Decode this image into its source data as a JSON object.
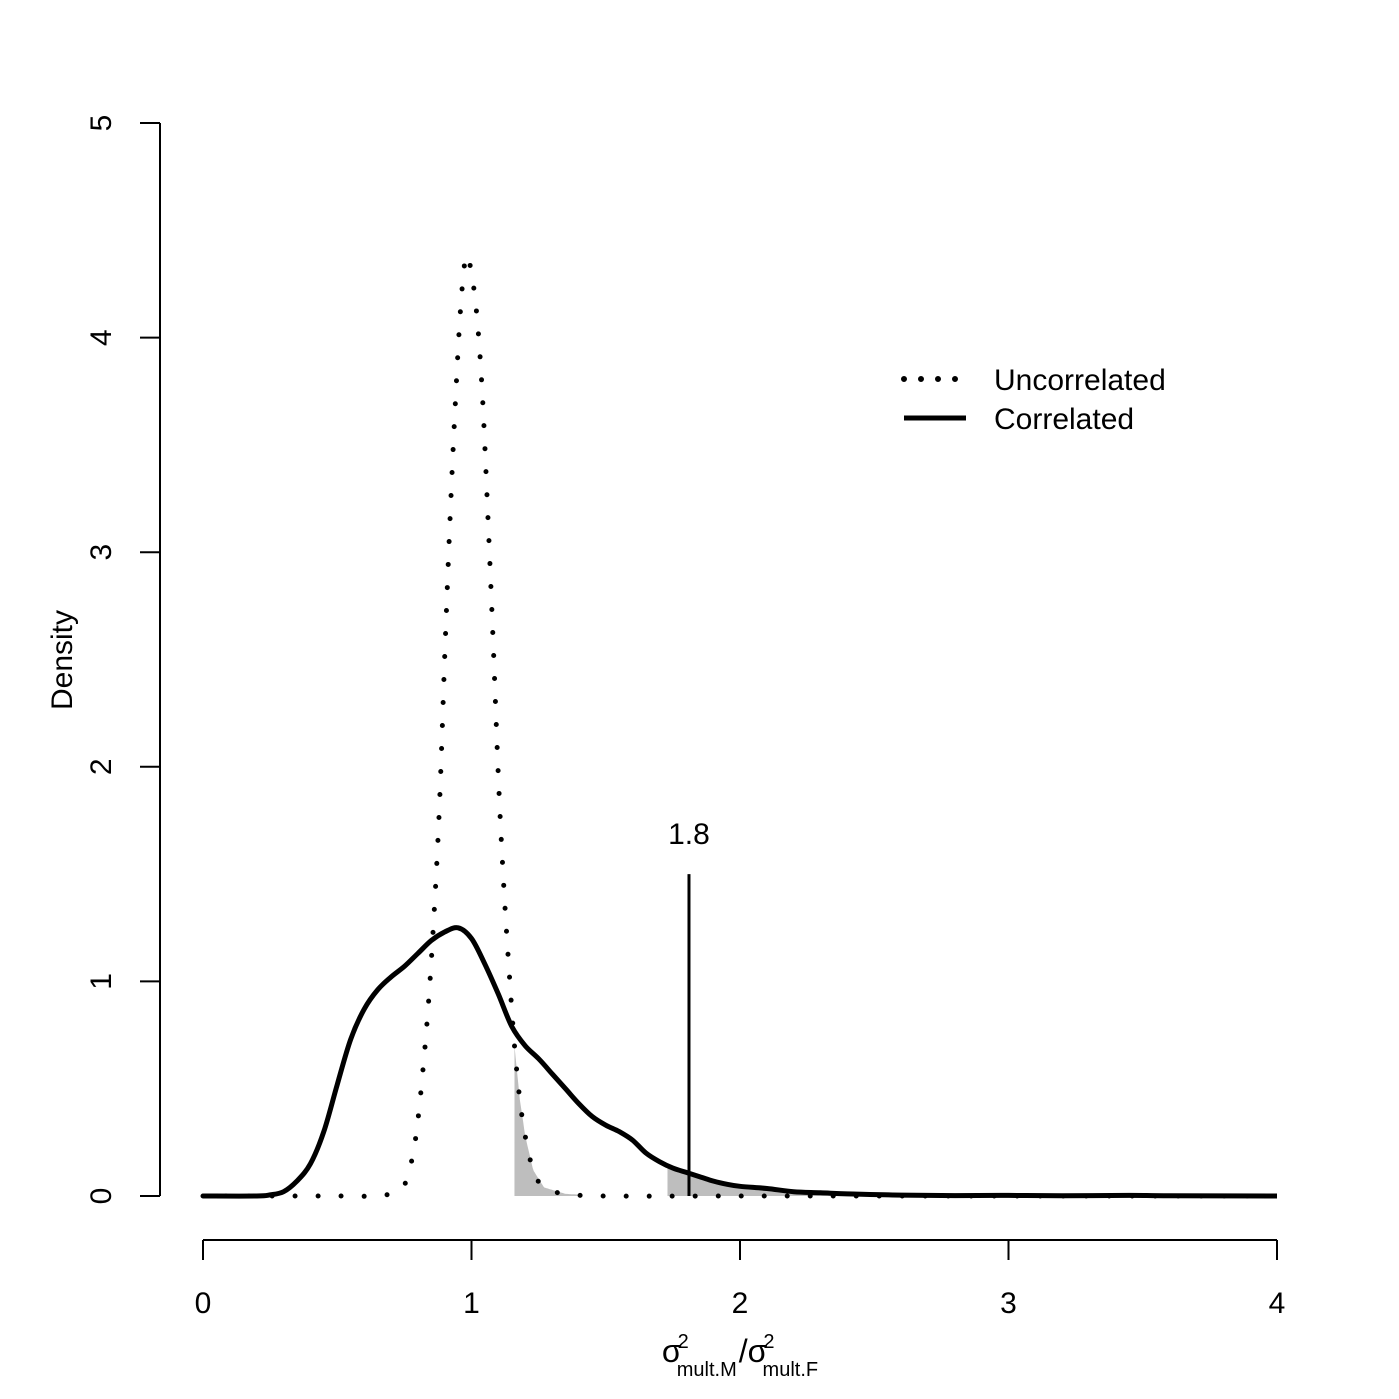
{
  "chart_data": {
    "type": "line",
    "title": "",
    "ylabel": "Density",
    "xlabel": {
      "numerator": {
        "symbol": "σ",
        "sup": "2",
        "sub": "mult.M"
      },
      "divider": "/",
      "denominator": {
        "symbol": "σ",
        "sup": "2",
        "sub": "mult.F"
      }
    },
    "xlim": [
      0,
      4
    ],
    "ylim": [
      0,
      5
    ],
    "x_ticks": [
      "0",
      "1",
      "2",
      "3",
      "4"
    ],
    "y_ticks": [
      "0",
      "1",
      "2",
      "3",
      "4",
      "5"
    ],
    "grid": false,
    "legend_position": "top-right",
    "series": [
      {
        "name": "Uncorrelated",
        "style": "dotted",
        "color": "#000000",
        "points": [
          [
            0.0,
            0.0
          ],
          [
            0.3,
            0.0
          ],
          [
            0.5,
            0.0
          ],
          [
            0.65,
            0.0
          ],
          [
            0.72,
            0.02
          ],
          [
            0.75,
            0.05
          ],
          [
            0.78,
            0.18
          ],
          [
            0.8,
            0.35
          ],
          [
            0.82,
            0.6
          ],
          [
            0.84,
            0.9
          ],
          [
            0.86,
            1.3
          ],
          [
            0.88,
            1.8
          ],
          [
            0.9,
            2.5
          ],
          [
            0.92,
            3.15
          ],
          [
            0.94,
            3.7
          ],
          [
            0.96,
            4.15
          ],
          [
            0.98,
            4.38
          ],
          [
            1.0,
            4.3
          ],
          [
            1.02,
            4.1
          ],
          [
            1.04,
            3.75
          ],
          [
            1.06,
            3.2
          ],
          [
            1.08,
            2.6
          ],
          [
            1.1,
            1.95
          ],
          [
            1.12,
            1.45
          ],
          [
            1.14,
            1.05
          ],
          [
            1.16,
            0.7
          ],
          [
            1.18,
            0.45
          ],
          [
            1.2,
            0.28
          ],
          [
            1.23,
            0.12
          ],
          [
            1.27,
            0.04
          ],
          [
            1.35,
            0.01
          ],
          [
            1.5,
            0.0
          ],
          [
            2.0,
            0.0
          ],
          [
            2.5,
            0.0
          ],
          [
            3.0,
            0.0
          ],
          [
            3.5,
            0.0
          ],
          [
            4.0,
            0.0
          ]
        ]
      },
      {
        "name": "Correlated",
        "style": "solid",
        "color": "#000000",
        "points": [
          [
            0.0,
            0.0
          ],
          [
            0.2,
            0.0
          ],
          [
            0.25,
            0.005
          ],
          [
            0.3,
            0.02
          ],
          [
            0.35,
            0.07
          ],
          [
            0.4,
            0.15
          ],
          [
            0.45,
            0.3
          ],
          [
            0.5,
            0.52
          ],
          [
            0.55,
            0.73
          ],
          [
            0.6,
            0.87
          ],
          [
            0.65,
            0.96
          ],
          [
            0.7,
            1.02
          ],
          [
            0.75,
            1.07
          ],
          [
            0.8,
            1.13
          ],
          [
            0.85,
            1.19
          ],
          [
            0.9,
            1.23
          ],
          [
            0.95,
            1.25
          ],
          [
            1.0,
            1.2
          ],
          [
            1.05,
            1.08
          ],
          [
            1.1,
            0.94
          ],
          [
            1.15,
            0.79
          ],
          [
            1.2,
            0.7
          ],
          [
            1.25,
            0.64
          ],
          [
            1.3,
            0.57
          ],
          [
            1.35,
            0.5
          ],
          [
            1.4,
            0.43
          ],
          [
            1.45,
            0.37
          ],
          [
            1.5,
            0.33
          ],
          [
            1.55,
            0.3
          ],
          [
            1.6,
            0.26
          ],
          [
            1.65,
            0.2
          ],
          [
            1.7,
            0.16
          ],
          [
            1.75,
            0.13
          ],
          [
            1.8,
            0.11
          ],
          [
            1.85,
            0.09
          ],
          [
            1.9,
            0.07
          ],
          [
            1.95,
            0.055
          ],
          [
            2.0,
            0.045
          ],
          [
            2.1,
            0.035
          ],
          [
            2.2,
            0.02
          ],
          [
            2.3,
            0.015
          ],
          [
            2.4,
            0.01
          ],
          [
            2.6,
            0.004
          ],
          [
            2.8,
            0.002
          ],
          [
            3.0,
            0.003
          ],
          [
            3.2,
            0.001
          ],
          [
            3.45,
            0.003
          ],
          [
            3.6,
            0.001
          ],
          [
            4.0,
            0.0
          ]
        ]
      }
    ],
    "shaded_regions": [
      {
        "series": "Uncorrelated",
        "x_from": 1.16,
        "x_to": 1.4,
        "color": "#bebebe"
      },
      {
        "series": "Correlated",
        "x_from": 1.73,
        "x_to": 2.35,
        "color": "#bebebe"
      }
    ],
    "annotation": {
      "text": "1.8",
      "x": 1.81,
      "y_top": 1.5
    }
  }
}
